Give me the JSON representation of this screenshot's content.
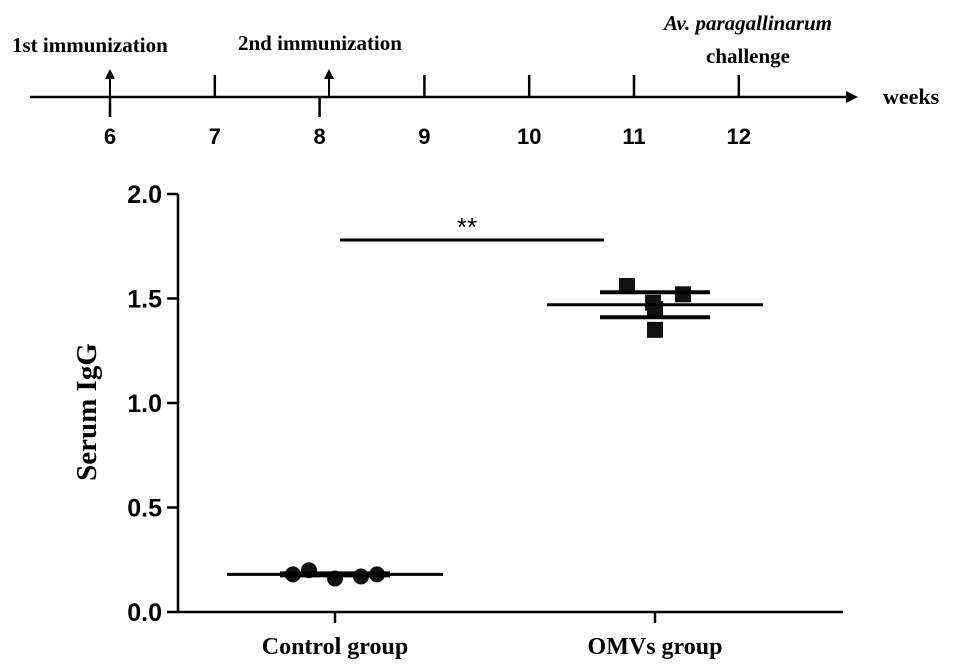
{
  "timeline": {
    "unit_label": "weeks",
    "ticks": [
      "6",
      "7",
      "8",
      "9",
      "10",
      "11",
      "12"
    ],
    "events": [
      {
        "week": "6",
        "label": "1st immunization",
        "arrow": true
      },
      {
        "week": "8",
        "label": "2nd immunization",
        "arrow": true
      },
      {
        "week": "12",
        "label_italic": "Av. paragallinarum",
        "label": "challenge",
        "arrow": false
      }
    ]
  },
  "chart_data": {
    "type": "scatter",
    "title": "",
    "xlabel": "",
    "ylabel": "Serum IgG",
    "ylim": [
      0.0,
      2.0
    ],
    "yticks": [
      "0.0",
      "0.5",
      "1.0",
      "1.5",
      "2.0"
    ],
    "categories": [
      "Control group",
      "OMVs group"
    ],
    "series": [
      {
        "name": "Control group",
        "marker": "circle",
        "values": [
          0.18,
          0.2,
          0.16,
          0.17,
          0.18
        ],
        "mean": 0.18,
        "error_upper": 0.185,
        "error_lower": 0.175
      },
      {
        "name": "OMVs group",
        "marker": "square",
        "values": [
          1.56,
          1.48,
          1.35,
          1.45,
          1.52
        ],
        "mean": 1.47,
        "error_upper": 1.53,
        "error_lower": 1.41
      }
    ],
    "significance": {
      "label": "**",
      "value": 1.78
    }
  }
}
